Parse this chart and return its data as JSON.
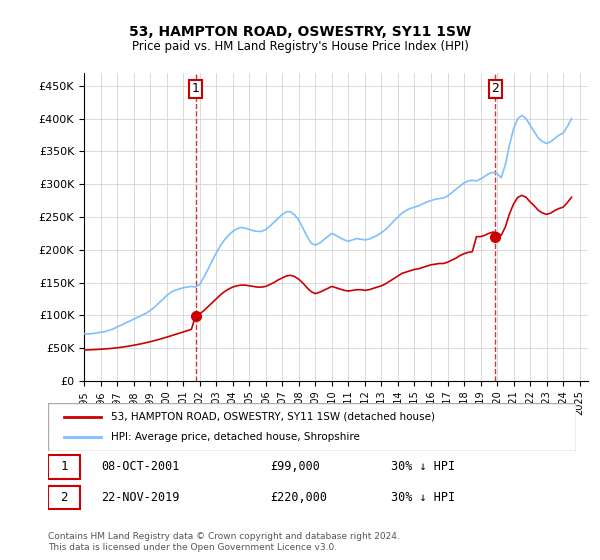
{
  "title": "53, HAMPTON ROAD, OSWESTRY, SY11 1SW",
  "subtitle": "Price paid vs. HM Land Registry's House Price Index (HPI)",
  "ylabel_ticks": [
    "£0",
    "£50K",
    "£100K",
    "£150K",
    "£200K",
    "£250K",
    "£300K",
    "£350K",
    "£400K",
    "£450K"
  ],
  "ylim": [
    0,
    470000
  ],
  "xlim_start": 1995.0,
  "xlim_end": 2025.5,
  "background_color": "#ffffff",
  "plot_bg_color": "#ffffff",
  "grid_color": "#cccccc",
  "hpi_color": "#7fbfff",
  "price_color": "#cc0000",
  "legend_hpi_label": "HPI: Average price, detached house, Shropshire",
  "legend_price_label": "53, HAMPTON ROAD, OSWESTRY, SY11 1SW (detached house)",
  "sale1_x": 2001.77,
  "sale1_y": 99000,
  "sale1_label": "1",
  "sale1_date": "08-OCT-2001",
  "sale1_price": "£99,000",
  "sale1_hpi": "30% ↓ HPI",
  "sale2_x": 2019.9,
  "sale2_y": 220000,
  "sale2_label": "2",
  "sale2_date": "22-NOV-2019",
  "sale2_price": "£220,000",
  "sale2_hpi": "30% ↓ HPI",
  "footnote": "Contains HM Land Registry data © Crown copyright and database right 2024.\nThis data is licensed under the Open Government Licence v3.0.",
  "hpi_years": [
    1995.0,
    1995.25,
    1995.5,
    1995.75,
    1996.0,
    1996.25,
    1996.5,
    1996.75,
    1997.0,
    1997.25,
    1997.5,
    1997.75,
    1998.0,
    1998.25,
    1998.5,
    1998.75,
    1999.0,
    1999.25,
    1999.5,
    1999.75,
    2000.0,
    2000.25,
    2000.5,
    2000.75,
    2001.0,
    2001.25,
    2001.5,
    2001.75,
    2002.0,
    2002.25,
    2002.5,
    2002.75,
    2003.0,
    2003.25,
    2003.5,
    2003.75,
    2004.0,
    2004.25,
    2004.5,
    2004.75,
    2005.0,
    2005.25,
    2005.5,
    2005.75,
    2006.0,
    2006.25,
    2006.5,
    2006.75,
    2007.0,
    2007.25,
    2007.5,
    2007.75,
    2008.0,
    2008.25,
    2008.5,
    2008.75,
    2009.0,
    2009.25,
    2009.5,
    2009.75,
    2010.0,
    2010.25,
    2010.5,
    2010.75,
    2011.0,
    2011.25,
    2011.5,
    2011.75,
    2012.0,
    2012.25,
    2012.5,
    2012.75,
    2013.0,
    2013.25,
    2013.5,
    2013.75,
    2014.0,
    2014.25,
    2014.5,
    2014.75,
    2015.0,
    2015.25,
    2015.5,
    2015.75,
    2016.0,
    2016.25,
    2016.5,
    2016.75,
    2017.0,
    2017.25,
    2017.5,
    2017.75,
    2018.0,
    2018.25,
    2018.5,
    2018.75,
    2019.0,
    2019.25,
    2019.5,
    2019.75,
    2020.0,
    2020.25,
    2020.5,
    2020.75,
    2021.0,
    2021.25,
    2021.5,
    2021.75,
    2022.0,
    2022.25,
    2022.5,
    2022.75,
    2023.0,
    2023.25,
    2023.5,
    2023.75,
    2024.0,
    2024.25,
    2024.5
  ],
  "hpi_values": [
    72000,
    71500,
    72000,
    73000,
    74000,
    75000,
    77000,
    79000,
    82000,
    85000,
    88000,
    91000,
    94000,
    97000,
    100000,
    103000,
    107000,
    112000,
    118000,
    124000,
    130000,
    135000,
    138000,
    140000,
    142000,
    143000,
    144000,
    143000,
    147000,
    158000,
    170000,
    183000,
    195000,
    206000,
    215000,
    222000,
    228000,
    232000,
    234000,
    233000,
    231000,
    229000,
    228000,
    228000,
    231000,
    236000,
    242000,
    248000,
    254000,
    258000,
    258000,
    253000,
    245000,
    233000,
    220000,
    210000,
    207000,
    210000,
    215000,
    220000,
    225000,
    222000,
    218000,
    215000,
    213000,
    215000,
    217000,
    216000,
    215000,
    216000,
    219000,
    222000,
    226000,
    231000,
    237000,
    244000,
    250000,
    256000,
    260000,
    263000,
    265000,
    267000,
    270000,
    273000,
    275000,
    277000,
    278000,
    279000,
    282000,
    287000,
    292000,
    297000,
    302000,
    305000,
    306000,
    305000,
    308000,
    312000,
    316000,
    318000,
    316000,
    310000,
    330000,
    360000,
    385000,
    400000,
    405000,
    400000,
    390000,
    380000,
    370000,
    365000,
    362000,
    365000,
    370000,
    375000,
    378000,
    388000,
    400000
  ],
  "price_years": [
    1995.0,
    1995.25,
    1995.5,
    1995.75,
    1996.0,
    1996.25,
    1996.5,
    1996.75,
    1997.0,
    1997.25,
    1997.5,
    1997.75,
    1998.0,
    1998.25,
    1998.5,
    1998.75,
    1999.0,
    1999.25,
    1999.5,
    1999.75,
    2000.0,
    2000.25,
    2000.5,
    2000.75,
    2001.0,
    2001.25,
    2001.5,
    2001.75,
    2002.0,
    2002.25,
    2002.5,
    2002.75,
    2003.0,
    2003.25,
    2003.5,
    2003.75,
    2004.0,
    2004.25,
    2004.5,
    2004.75,
    2005.0,
    2005.25,
    2005.5,
    2005.75,
    2006.0,
    2006.25,
    2006.5,
    2006.75,
    2007.0,
    2007.25,
    2007.5,
    2007.75,
    2008.0,
    2008.25,
    2008.5,
    2008.75,
    2009.0,
    2009.25,
    2009.5,
    2009.75,
    2010.0,
    2010.25,
    2010.5,
    2010.75,
    2011.0,
    2011.25,
    2011.5,
    2011.75,
    2012.0,
    2012.25,
    2012.5,
    2012.75,
    2013.0,
    2013.25,
    2013.5,
    2013.75,
    2014.0,
    2014.25,
    2014.5,
    2014.75,
    2015.0,
    2015.25,
    2015.5,
    2015.75,
    2016.0,
    2016.25,
    2016.5,
    2016.75,
    2017.0,
    2017.25,
    2017.5,
    2017.75,
    2018.0,
    2018.25,
    2018.5,
    2018.75,
    2019.0,
    2019.25,
    2019.5,
    2019.75,
    2020.0,
    2020.25,
    2020.5,
    2020.75,
    2021.0,
    2021.25,
    2021.5,
    2021.75,
    2022.0,
    2022.25,
    2022.5,
    2022.75,
    2023.0,
    2023.25,
    2023.5,
    2023.75,
    2024.0,
    2024.25,
    2024.5
  ],
  "price_values": [
    47000,
    47200,
    47500,
    47800,
    48200,
    48600,
    49100,
    49700,
    50400,
    51200,
    52100,
    53100,
    54200,
    55400,
    56700,
    58100,
    59600,
    61200,
    62900,
    64700,
    66600,
    68500,
    70500,
    72500,
    74500,
    76500,
    78500,
    99000,
    102000,
    107000,
    113000,
    119000,
    125000,
    131000,
    136000,
    140000,
    143000,
    145000,
    146000,
    146000,
    145000,
    144000,
    143000,
    143000,
    144000,
    147000,
    150000,
    154000,
    157000,
    160000,
    161000,
    159000,
    155000,
    149000,
    142000,
    136000,
    133000,
    135000,
    138000,
    141000,
    144000,
    142000,
    140000,
    138000,
    137000,
    138000,
    139000,
    139000,
    138000,
    139000,
    141000,
    143000,
    145000,
    148000,
    152000,
    156000,
    160000,
    164000,
    166000,
    168000,
    170000,
    171000,
    173000,
    175000,
    177000,
    178000,
    179000,
    179000,
    181000,
    184000,
    187000,
    191000,
    194000,
    196000,
    197000,
    220000,
    220000,
    222000,
    225000,
    227000,
    226000,
    222000,
    235000,
    255000,
    270000,
    280000,
    283000,
    280000,
    273000,
    267000,
    260000,
    256000,
    254000,
    256000,
    260000,
    263000,
    265000,
    272000,
    280000
  ]
}
